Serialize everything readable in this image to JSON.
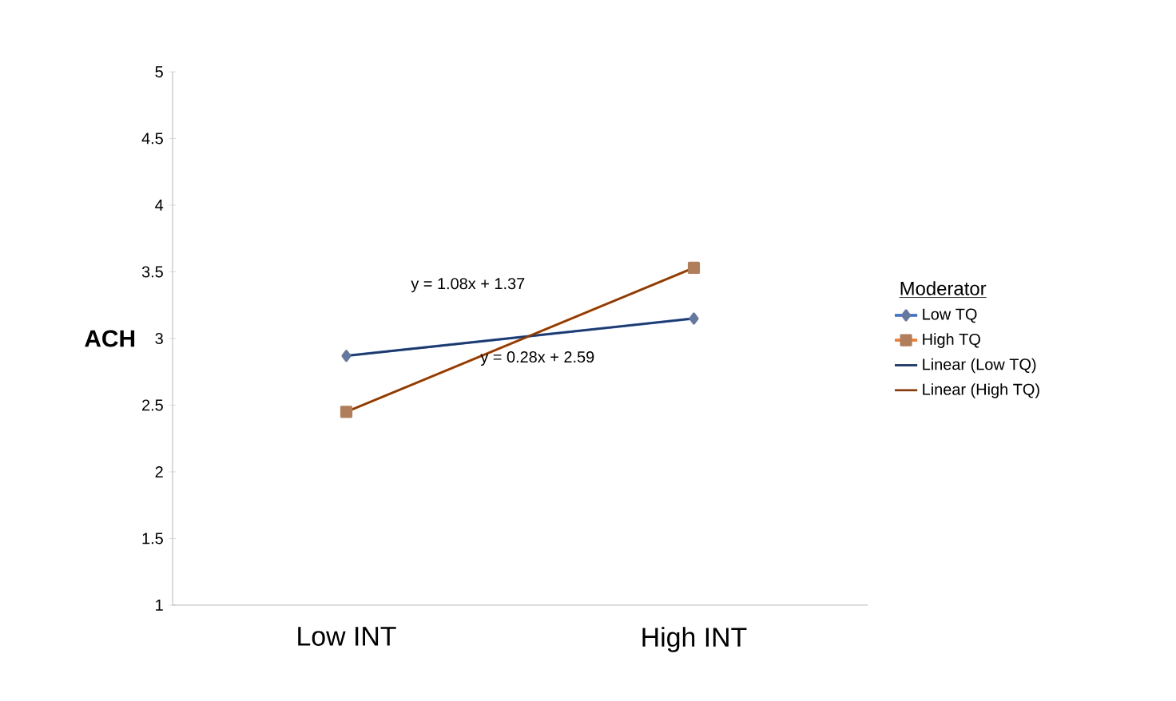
{
  "chart_data": {
    "type": "line",
    "ylabel": "ACH",
    "legend_title": "Moderator",
    "categories": [
      "Low INT",
      "High INT"
    ],
    "ylim": [
      1,
      5
    ],
    "yticks": [
      1,
      1.5,
      2,
      2.5,
      3,
      3.5,
      4,
      4.5,
      5
    ],
    "grid": false,
    "legend": "right",
    "series": [
      {
        "name": "Low TQ",
        "color": "#4472c4",
        "values": [
          2.87,
          3.15
        ],
        "marker": "diamond"
      },
      {
        "name": "High TQ",
        "color": "#ed7d31",
        "values": [
          2.45,
          3.53
        ],
        "marker": "square"
      },
      {
        "name": "Linear (Low TQ)",
        "color": "#1f3864",
        "values": [
          2.87,
          3.15
        ],
        "marker": "none"
      },
      {
        "name": "Linear (High TQ)",
        "color": "#843c0c",
        "values": [
          2.45,
          3.53
        ],
        "marker": "none"
      }
    ],
    "annotations": [
      "y = 1.08x + 1.37",
      "y = 0.28x + 2.59"
    ]
  }
}
